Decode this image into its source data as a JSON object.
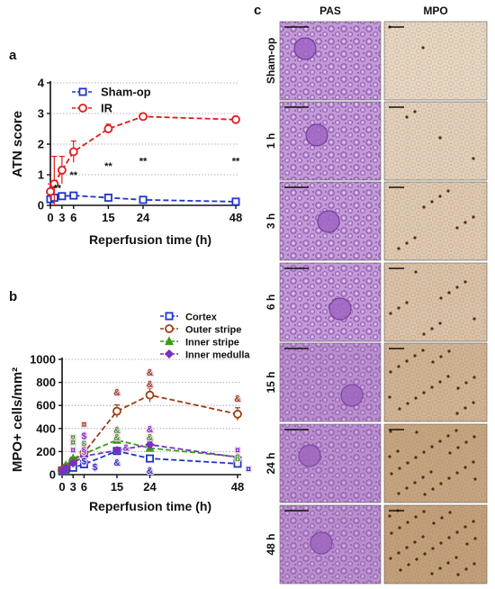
{
  "panels": {
    "a": "a",
    "b": "b",
    "c": "c"
  },
  "chart_data": [
    {
      "type": "line",
      "panel": "a",
      "ylabel": "ATN score",
      "xlabel": "Reperfusion time (h)",
      "x": [
        0,
        1,
        3,
        6,
        15,
        24,
        48
      ],
      "xticks": [
        "0",
        "3",
        "6",
        "15",
        "24",
        "48"
      ],
      "xtick_values": [
        0,
        3,
        6,
        15,
        24,
        48
      ],
      "ylim": [
        0,
        4
      ],
      "yticks": [
        "0",
        "1",
        "2",
        "3",
        "4"
      ],
      "ytick_values": [
        0,
        1,
        2,
        3,
        4
      ],
      "grid": "horizontal dotted",
      "legend_position": "top-left",
      "series": [
        {
          "name": "Sham-op",
          "color": "#1f35c9",
          "marker": "square",
          "values": [
            0.2,
            0.25,
            0.3,
            0.32,
            0.25,
            0.18,
            0.12
          ],
          "errors": [
            0.02,
            0.05,
            0.05,
            0.05,
            0.05,
            0.03,
            0.03
          ]
        },
        {
          "name": "IR",
          "color": "#e31a1c",
          "marker": "circle",
          "values": [
            0.45,
            0.7,
            1.15,
            1.75,
            2.5,
            2.9,
            2.8
          ],
          "errors": [
            0.25,
            0.9,
            0.45,
            0.35,
            0.15,
            0.08,
            0.1
          ]
        }
      ],
      "annotations": [
        {
          "text": "**",
          "x": 1.8,
          "y": 0.58
        },
        {
          "text": "**",
          "x": 6,
          "y": 1.0
        },
        {
          "text": "**",
          "x": 15,
          "y": 1.3
        },
        {
          "text": "**",
          "x": 24,
          "y": 1.45
        },
        {
          "text": "**",
          "x": 48,
          "y": 1.45
        }
      ]
    },
    {
      "type": "line",
      "panel": "b",
      "ylabel": "MPO+ cells/mm²",
      "xlabel": "Reperfusion time (h)",
      "x": [
        0,
        1,
        3,
        6,
        15,
        24,
        48
      ],
      "xticks": [
        "0",
        "3",
        "6",
        "15",
        "24",
        "48"
      ],
      "xtick_values": [
        0,
        3,
        6,
        15,
        24,
        48
      ],
      "ylim": [
        0,
        1000
      ],
      "yticks": [
        "0",
        "200",
        "400",
        "600",
        "800",
        "1000"
      ],
      "ytick_values": [
        0,
        200,
        400,
        600,
        800,
        1000
      ],
      "grid": "horizontal dotted",
      "legend_position": "top-right",
      "series": [
        {
          "name": "Cortex",
          "color": "#1f35c9",
          "marker": "square",
          "values": [
            35,
            45,
            60,
            90,
            205,
            140,
            95
          ],
          "errors": [
            5,
            5,
            8,
            10,
            15,
            12,
            10
          ]
        },
        {
          "name": "Outer stripe",
          "color": "#9c3d12",
          "marker": "circle",
          "values": [
            40,
            60,
            120,
            190,
            550,
            690,
            525
          ],
          "errors": [
            5,
            8,
            12,
            20,
            55,
            60,
            55
          ]
        },
        {
          "name": "Inner stripe",
          "color": "#3a9a1e",
          "marker": "triangle",
          "values": [
            38,
            80,
            140,
            180,
            300,
            230,
            155
          ],
          "errors": [
            5,
            8,
            12,
            18,
            25,
            20,
            15
          ]
        },
        {
          "name": "Inner medulla",
          "color": "#7b2fbf",
          "marker": "diamond",
          "values": [
            30,
            55,
            100,
            160,
            210,
            260,
            150
          ],
          "errors": [
            5,
            6,
            10,
            15,
            20,
            25,
            15
          ]
        }
      ],
      "annotations": [
        {
          "text": "¤",
          "x": 6,
          "y": 440,
          "color": "#9c3d12"
        },
        {
          "text": "¤",
          "x": 3,
          "y": 330,
          "color": "#3a9a1e"
        },
        {
          "text": "¤",
          "x": 3,
          "y": 285,
          "color": "#3a9a1e"
        },
        {
          "text": "¤",
          "x": 3,
          "y": 220,
          "color": "#7b2fbf"
        },
        {
          "text": "$",
          "x": 6,
          "y": 340,
          "color": "#7b2fbf"
        },
        {
          "text": "§",
          "x": 6,
          "y": 270,
          "color": "#3a9a1e"
        },
        {
          "text": "§",
          "x": 6,
          "y": 215,
          "color": "#7b2fbf"
        },
        {
          "text": "$",
          "x": 6,
          "y": 120,
          "color": "#1f35c9"
        },
        {
          "text": "$",
          "x": 9,
          "y": 70,
          "color": "#1f35c9"
        },
        {
          "text": "&",
          "x": 15,
          "y": 720,
          "color": "#9c3d12"
        },
        {
          "text": "&",
          "x": 15,
          "y": 390,
          "color": "#3a9a1e"
        },
        {
          "text": "&",
          "x": 15,
          "y": 330,
          "color": "#3a9a1e"
        },
        {
          "text": "&",
          "x": 17.5,
          "y": 240,
          "color": "#7b2fbf"
        },
        {
          "text": "&",
          "x": 15,
          "y": 110,
          "color": "#1f35c9"
        },
        {
          "text": "&",
          "x": 24,
          "y": 890,
          "color": "#9c3d12"
        },
        {
          "text": "&",
          "x": 24,
          "y": 790,
          "color": "#9c3d12"
        },
        {
          "text": "&",
          "x": 24,
          "y": 400,
          "color": "#7b2fbf"
        },
        {
          "text": "&",
          "x": 24,
          "y": 330,
          "color": "#3a9a1e"
        },
        {
          "text": "&",
          "x": 24,
          "y": 40,
          "color": "#1f35c9"
        },
        {
          "text": "&",
          "x": 48,
          "y": 665,
          "color": "#9c3d12"
        },
        {
          "text": "¤",
          "x": 48,
          "y": 220,
          "color": "#7b2fbf"
        },
        {
          "text": "ß",
          "x": 48,
          "y": 150,
          "color": "#3a9a1e"
        },
        {
          "text": "¤",
          "x": 51,
          "y": 55,
          "color": "#1f35c9"
        }
      ]
    }
  ],
  "micrographs": {
    "columns": [
      "PAS",
      "MPO"
    ],
    "rows": [
      "Sham-op",
      "1 h",
      "3 h",
      "6 h",
      "15 h",
      "24 h",
      "48 h"
    ],
    "stain_colors": {
      "pas_light": "#c9a3d9",
      "pas_dark": "#7c3f9e",
      "mpo_light": "#e8d6bf",
      "mpo_dark": "#8a5a2b"
    }
  }
}
